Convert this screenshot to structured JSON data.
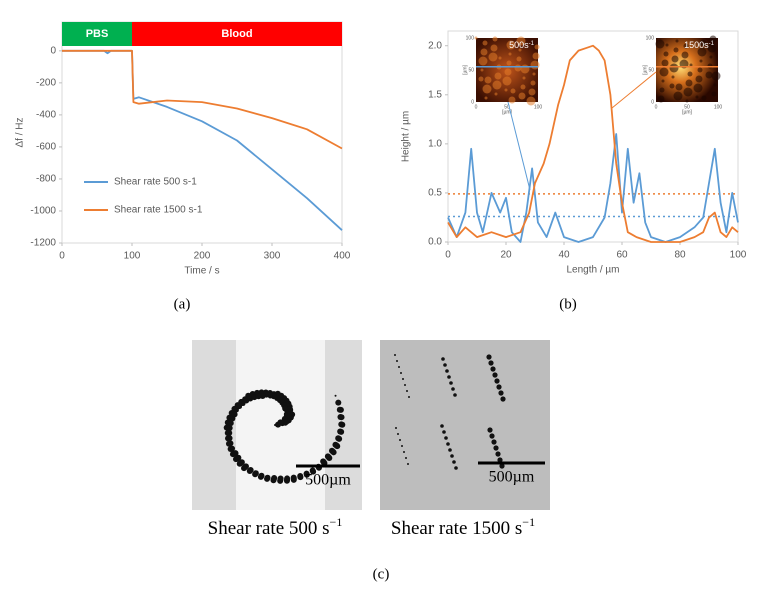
{
  "chart_data": [
    {
      "type": "line",
      "panel": "(a)",
      "x_label": "Time / s",
      "y_label": "Δf / Hz",
      "xlim": [
        0,
        400
      ],
      "xticks": [
        0,
        100,
        200,
        300,
        400
      ],
      "ylim": [
        -1200,
        180
      ],
      "yticks": [
        0,
        -200,
        -400,
        -600,
        -800,
        -1000,
        -1200
      ],
      "grid": false,
      "legend": "lower left",
      "phases": [
        {
          "label": "PBS",
          "start": 0,
          "end": 100,
          "color": "#00b050"
        },
        {
          "label": "Blood",
          "start": 100,
          "end": 400,
          "color": "#ff0000"
        }
      ],
      "series": [
        {
          "name": "Shear rate 500 s-1",
          "color": "#5b9bd5",
          "x": [
            0,
            60,
            65,
            70,
            100,
            102,
            110,
            150,
            200,
            250,
            300,
            350,
            400
          ],
          "values": [
            0,
            0,
            -15,
            0,
            0,
            -300,
            -290,
            -350,
            -440,
            -560,
            -740,
            -920,
            -1120
          ]
        },
        {
          "name": "Shear rate 1500 s-1",
          "color": "#ed7d31",
          "x": [
            0,
            100,
            102,
            110,
            150,
            200,
            250,
            300,
            350,
            400
          ],
          "values": [
            0,
            0,
            -320,
            -330,
            -310,
            -320,
            -360,
            -420,
            -490,
            -610
          ]
        }
      ]
    },
    {
      "type": "line",
      "panel": "(b)",
      "x_label": "Length / µm",
      "y_label": "Height / µm",
      "xlim": [
        0,
        100
      ],
      "xticks": [
        0,
        20,
        40,
        60,
        80,
        100
      ],
      "ylim": [
        0,
        2.15
      ],
      "yticks": [
        {
          "value": 0,
          "label": "0.0"
        },
        {
          "value": 0.5,
          "label": "0.5"
        },
        {
          "value": 1,
          "label": "1.0"
        },
        {
          "value": 1.5,
          "label": "1.5"
        },
        {
          "value": 2,
          "label": "2.0"
        }
      ],
      "grid": false,
      "reference_lines": [
        {
          "value": 0.49,
          "color": "#ed7d31"
        },
        {
          "value": 0.26,
          "color": "#5b9bd5"
        }
      ],
      "insets": [
        {
          "label": "500s",
          "sup": "-1",
          "ticks": [
            0,
            50,
            100
          ],
          "axis_label": "[µm]"
        },
        {
          "label": "1500s",
          "sup": "-1",
          "ticks": [
            0,
            50,
            100
          ],
          "axis_label": "[µm]"
        }
      ],
      "series": [
        {
          "color": "#5b9bd5",
          "x": [
            0,
            3,
            6,
            8,
            10,
            12,
            15,
            18,
            20,
            22,
            25,
            27,
            29,
            31,
            34,
            37,
            40,
            45,
            50,
            54,
            56,
            58,
            60,
            62,
            64,
            66,
            68,
            70,
            75,
            80,
            85,
            88,
            90,
            92,
            94,
            96,
            98,
            100
          ],
          "values": [
            0.25,
            0.05,
            0.3,
            0.95,
            0.3,
            0.1,
            0.5,
            0.3,
            0.45,
            0.1,
            0.0,
            0.3,
            0.75,
            0.2,
            0.05,
            0.3,
            0.05,
            0.0,
            0.05,
            0.25,
            0.6,
            1.1,
            0.3,
            0.95,
            0.4,
            0.7,
            0.2,
            0.05,
            0.0,
            0.05,
            0.15,
            0.25,
            0.6,
            0.95,
            0.4,
            0.1,
            0.5,
            0.2
          ]
        },
        {
          "color": "#ed7d31",
          "x": [
            0,
            3,
            6,
            10,
            15,
            20,
            25,
            28,
            30,
            33,
            35,
            38,
            40,
            42,
            45,
            48,
            50,
            52,
            54,
            56,
            58,
            60,
            62,
            65,
            70,
            80,
            85,
            88,
            90,
            92,
            94,
            96,
            98,
            100
          ],
          "values": [
            0.2,
            0.05,
            0.15,
            0.05,
            0.1,
            0.05,
            0.1,
            0.3,
            0.6,
            0.8,
            1.0,
            1.4,
            1.6,
            1.85,
            1.95,
            1.98,
            2.0,
            1.95,
            1.85,
            1.5,
            0.8,
            0.4,
            0.1,
            0.05,
            0.0,
            0.0,
            0.05,
            0.1,
            0.25,
            0.3,
            0.1,
            0.05,
            0.15,
            0.1
          ]
        }
      ]
    }
  ],
  "images": {
    "panel": "(c)",
    "items": [
      {
        "scale_bar": "500µm",
        "caption": "Shear rate 500 s",
        "sup": "−1"
      },
      {
        "scale_bar": "500µm",
        "caption": "Shear rate 1500 s",
        "sup": "−1"
      }
    ]
  }
}
